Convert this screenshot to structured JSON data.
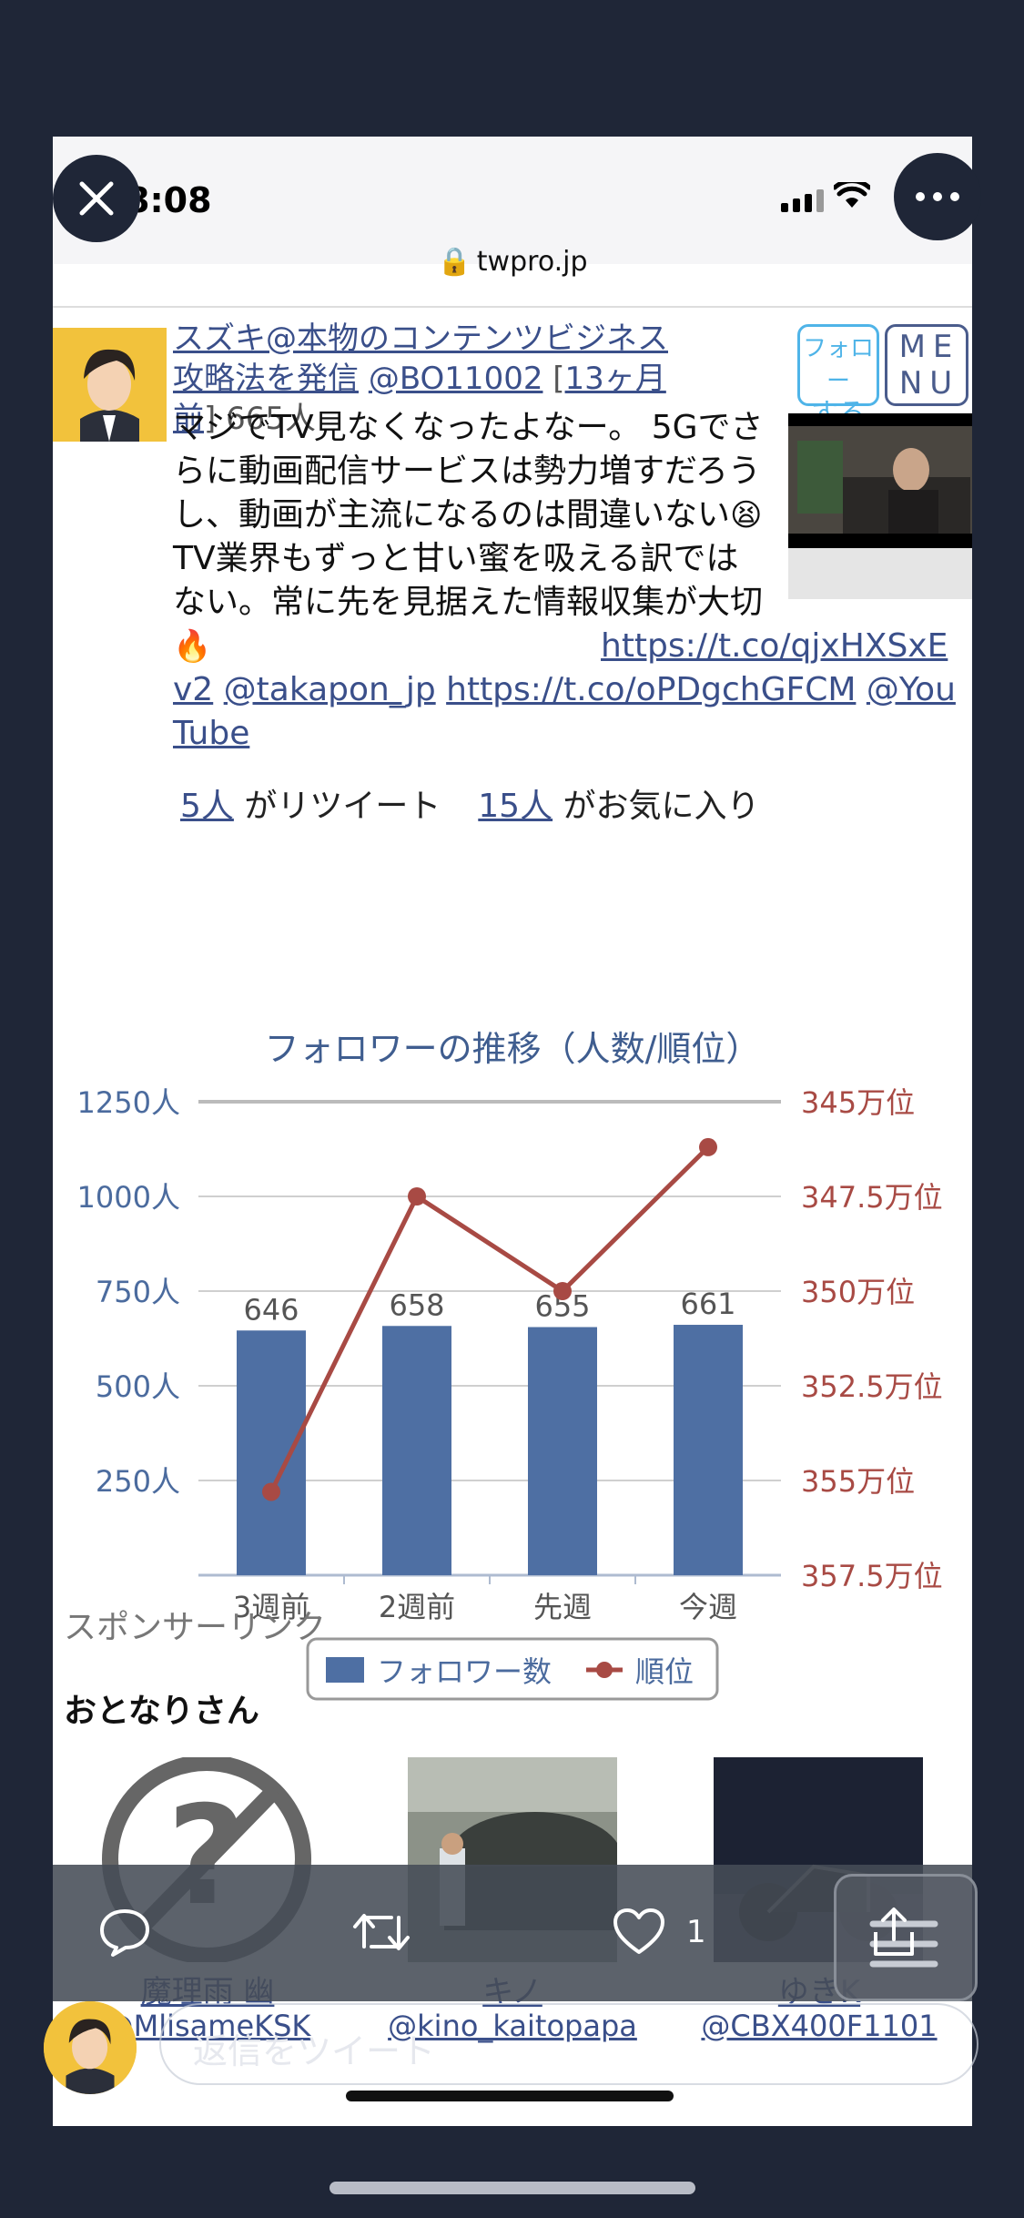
{
  "status": {
    "time": "8:08",
    "url": "twpro.jp"
  },
  "tweet": {
    "author_name": "スズキ@本物のコンテンツビジネス攻略法を発信",
    "handle": "@BO11002",
    "time_ago": "13ヶ月前",
    "followers": "665人",
    "follow_label_1": "フォロー",
    "follow_label_2": "する",
    "menu_label_1": "ME",
    "menu_label_2": "NU",
    "text_1": "マジでTV見なくなったよなー。 5Gでさらに動画配信サービスは勢力増すだろうし、動画が主流になるのは間違いない",
    "text_2": " TV業界もずっと甘い蜜を吸える訳ではない。常に先を見据えた情報収集が大切",
    "link_1": "https://t.co/qjxHXSxEv2",
    "mention_1": "@takapon_jp",
    "link_2": "https://t.co/oPDgchGFCM",
    "mention_2": "@YouTube",
    "retweets": "5人",
    "retweet_suffix": "がリツイート",
    "likes": "15人",
    "likes_suffix": "がお気に入り"
  },
  "chart_data": {
    "type": "bar",
    "title": "フォロワーの推移（人数/順位）",
    "categories": [
      "3週前",
      "2週前",
      "先週",
      "今週"
    ],
    "left_axis": {
      "ticks": [
        "1250人",
        "1000人",
        "750人",
        "500人",
        "250人"
      ],
      "ylim": [
        0,
        1250
      ]
    },
    "right_axis": {
      "ticks": [
        "345万位",
        "347.5万位",
        "350万位",
        "352.5万位",
        "355万位",
        "357.5万位"
      ],
      "ylim": [
        3575000,
        3450000
      ],
      "inverted": true
    },
    "series": [
      {
        "name": "フォロワー数",
        "type": "bar",
        "axis": "left",
        "values": [
          646,
          658,
          655,
          661
        ],
        "data_labels": [
          "646",
          "658",
          "655",
          "661"
        ],
        "color": "#4e6fa3"
      },
      {
        "name": "順位",
        "type": "line",
        "axis": "right",
        "values": [
          3553000,
          3475000,
          3500000,
          3462000
        ],
        "color": "#a84a44"
      }
    ],
    "legend": "bottom",
    "grid": true
  },
  "sponsor_label": "スポンサーリンク",
  "neighbors": {
    "title": "おとなりさん",
    "items": [
      {
        "name": "魔理雨 幽",
        "handle": "@MlisameKSK"
      },
      {
        "name": "キノ",
        "handle": "@kino_kaitopapa"
      },
      {
        "name": "ゆきK",
        "handle": "@CBX400F1101"
      }
    ]
  },
  "actions": {
    "like_count": "1"
  },
  "reply": {
    "placeholder": "返信をツイート"
  }
}
